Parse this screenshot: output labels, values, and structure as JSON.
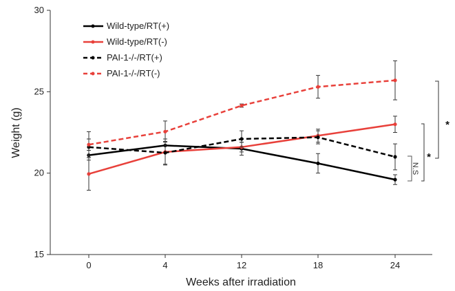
{
  "chart_data": {
    "type": "line",
    "title": "",
    "xlabel": "Weeks after irradiation",
    "ylabel": "Weight (g)",
    "categories": [
      "0",
      "4",
      "12",
      "18",
      "24"
    ],
    "ylim": [
      15,
      30
    ],
    "yticks": [
      15,
      20,
      25,
      30
    ],
    "grid": false,
    "legend_position": "top-left",
    "series": [
      {
        "name": "Wild-type/RT(+)",
        "color": "#000000",
        "dashed": false,
        "values": [
          21.1,
          21.7,
          21.5,
          20.6,
          19.6
        ],
        "errors": [
          0.3,
          0.4,
          0.4,
          0.6,
          0.3
        ]
      },
      {
        "name": "Wild-type/RT(-)",
        "color": "#e8403a",
        "dashed": false,
        "values": [
          19.95,
          21.3,
          21.6,
          22.3,
          23.0
        ],
        "errors": [
          1.0,
          0.8,
          0.3,
          0.4,
          0.5
        ]
      },
      {
        "name": "PAI-1-/-/RT(+)",
        "color": "#000000",
        "dashed": true,
        "values": [
          21.6,
          21.25,
          22.1,
          22.2,
          21.0
        ],
        "errors": [
          0.5,
          0.7,
          0.5,
          0.4,
          0.8
        ]
      },
      {
        "name": "PAI-1-/-/RT(-)",
        "color": "#e8403a",
        "dashed": true,
        "values": [
          21.75,
          22.55,
          24.15,
          25.3,
          25.7
        ],
        "errors": [
          0.8,
          0.65,
          0.1,
          0.7,
          1.2
        ]
      }
    ],
    "annotations": {
      "ns_label": "N.S",
      "sig_inner": "*",
      "sig_outer": "*"
    }
  }
}
